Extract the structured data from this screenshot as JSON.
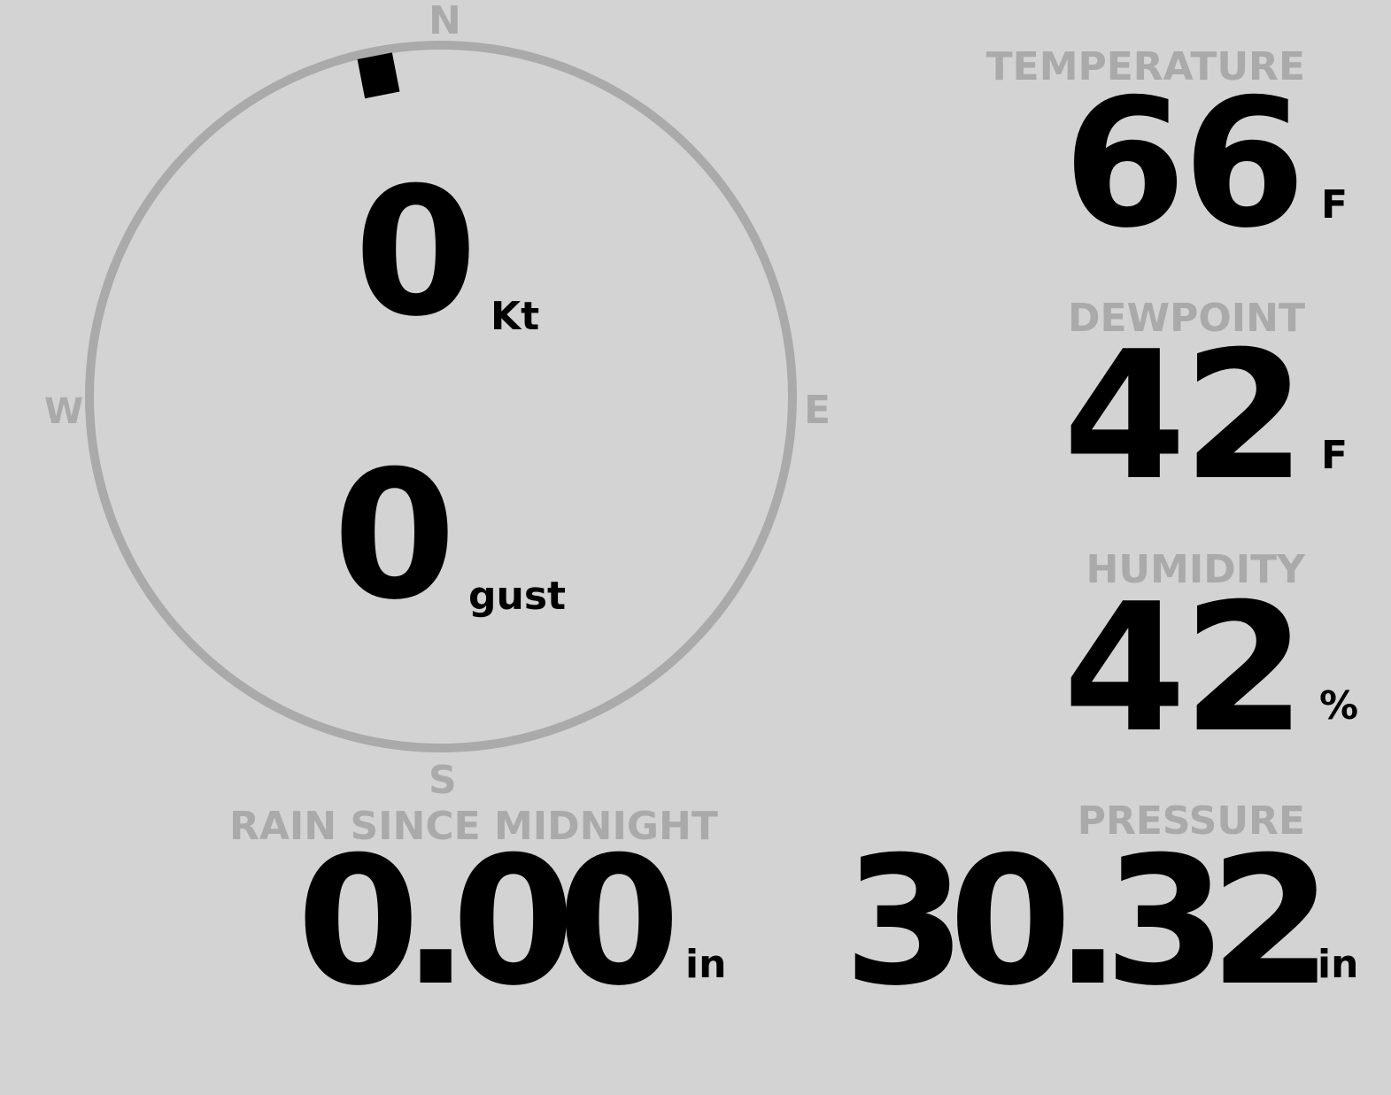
{
  "wind": {
    "speed": "0",
    "speed_unit": "Kt",
    "gust": "0",
    "gust_unit": "gust",
    "direction_deg": 349,
    "cardinals": {
      "n": "N",
      "e": "E",
      "s": "S",
      "w": "W"
    }
  },
  "temperature": {
    "label": "TEMPERATURE",
    "value": "66",
    "unit": "F"
  },
  "dewpoint": {
    "label": "DEWPOINT",
    "value": "42",
    "unit": "F"
  },
  "humidity": {
    "label": "HUMIDITY",
    "value": "42",
    "unit": "%"
  },
  "rain": {
    "label": "RAIN SINCE MIDNIGHT",
    "value": "0.00",
    "unit": "in"
  },
  "pressure": {
    "label": "PRESSURE",
    "value": "30.32",
    "unit": "in"
  },
  "colors": {
    "background": "#d3d3d3",
    "label": "#aaaaaa",
    "value": "#000000"
  }
}
